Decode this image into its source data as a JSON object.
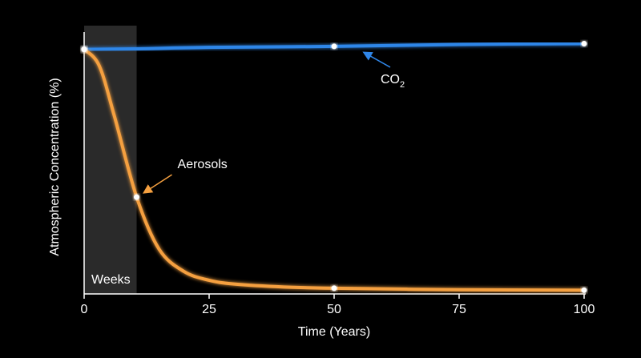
{
  "chart_data": {
    "type": "line",
    "xlabel": "Time (Years)",
    "ylabel": "Atmospheric Concentration (%)",
    "xlim": [
      0,
      100
    ],
    "ylim": [
      0,
      100
    ],
    "x_ticks": [
      0,
      25,
      50,
      75,
      100
    ],
    "x_tick_labels": [
      "0",
      "25",
      "50",
      "75",
      "100"
    ],
    "grid": false,
    "shaded_region": {
      "x_start": 0,
      "x_end": 10.5,
      "label": "Weeks"
    },
    "series": [
      {
        "name_prefix": "CO",
        "name_subscript": "2",
        "color": "#2f86e8",
        "points": [
          [
            0,
            98.5
          ],
          [
            10,
            98.7
          ],
          [
            25,
            99.3
          ],
          [
            50,
            99.7
          ],
          [
            75,
            100.5
          ],
          [
            100,
            100.8
          ]
        ],
        "markers_x": [
          0,
          50,
          100
        ]
      },
      {
        "name": "Aerosols",
        "color": "#f5a040",
        "points": [
          [
            0,
            98.5
          ],
          [
            3,
            92
          ],
          [
            6,
            72
          ],
          [
            10.5,
            39
          ],
          [
            15,
            18
          ],
          [
            20,
            9
          ],
          [
            25,
            5.5
          ],
          [
            30,
            4
          ],
          [
            40,
            2.8
          ],
          [
            50,
            2.3
          ],
          [
            75,
            1.7
          ],
          [
            100,
            1.5
          ]
        ],
        "markers_x": [
          0,
          10.5,
          50,
          100
        ]
      }
    ],
    "annotations": [
      {
        "series": 0,
        "at_x": 50
      },
      {
        "series": 1,
        "at_x": 10.5
      }
    ]
  }
}
